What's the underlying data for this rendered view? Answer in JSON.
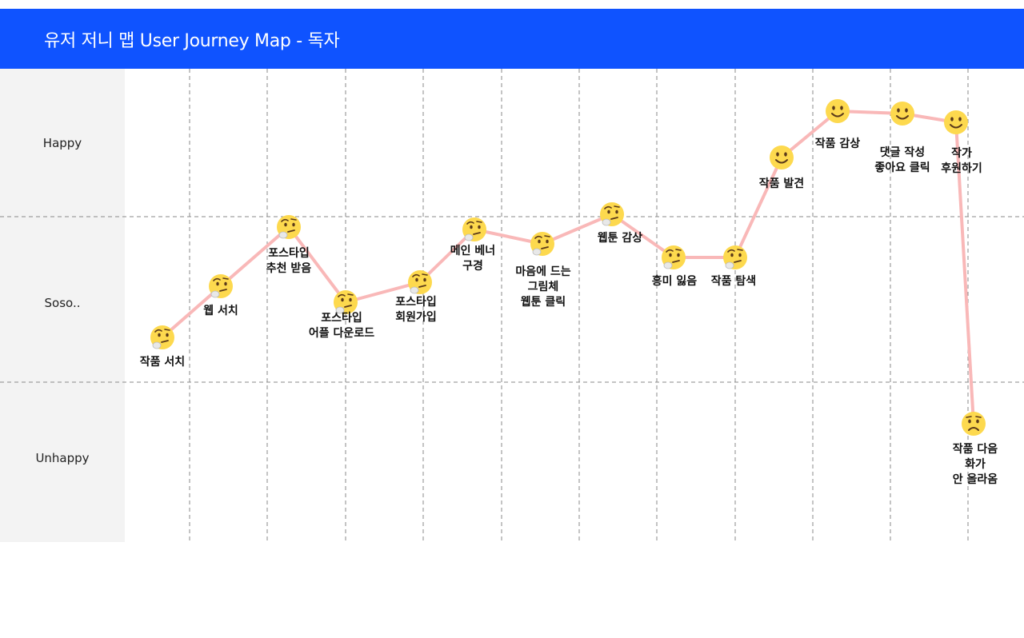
{
  "header": {
    "title": "유저 저니 맵  User Journey Map - 독자"
  },
  "rows": [
    {
      "label": "Happy"
    },
    {
      "label": "Soso.."
    },
    {
      "label": "Unhappy"
    }
  ],
  "colors": {
    "header_bg": "#0f53ff",
    "line": "#f9b8b8",
    "face": "#fdd94e",
    "face_dark": "#5b3a1a"
  },
  "chart_data": {
    "type": "line",
    "y_scale": [
      "Unhappy",
      "Soso..",
      "Happy"
    ],
    "points": [
      {
        "label": "작품 서치",
        "mood": "thinking"
      },
      {
        "label": "웹 서치",
        "mood": "thinking"
      },
      {
        "label": "포스타입\n추천 받음",
        "mood": "thinking"
      },
      {
        "label": "포스타입\n어플 다운로드",
        "mood": "thinking"
      },
      {
        "label": "포스타입\n회원가입",
        "mood": "thinking"
      },
      {
        "label": "메인 베너\n구경",
        "mood": "thinking"
      },
      {
        "label": "마음에 드는\n그림체\n웹툰 클릭",
        "mood": "thinking"
      },
      {
        "label": "웹툰 감상",
        "mood": "thinking"
      },
      {
        "label": "흥미 잃음",
        "mood": "thinking"
      },
      {
        "label": "작품 탐색",
        "mood": "thinking"
      },
      {
        "label": "작품 발견",
        "mood": "happy"
      },
      {
        "label": "작품 감상",
        "mood": "happy"
      },
      {
        "label": "댓글 작성\n좋아요 클릭",
        "mood": "happy"
      },
      {
        "label": "작가\n후원하기",
        "mood": "happy"
      },
      {
        "label": "작품 다음화가\n안 올라옴",
        "mood": "sad"
      }
    ]
  }
}
